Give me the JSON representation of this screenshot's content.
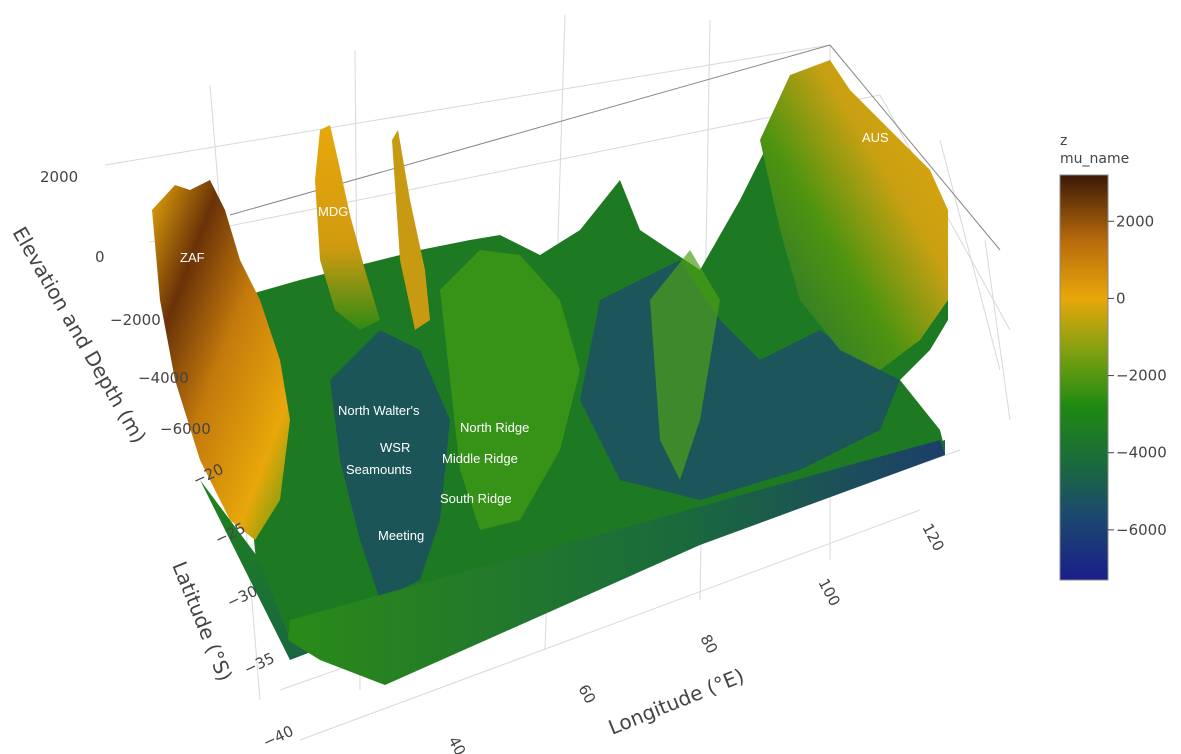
{
  "chart_data": {
    "type": "surface",
    "axes": {
      "x": {
        "label": "Longitude (°E)",
        "ticks": [
          40,
          60,
          80,
          100,
          120
        ],
        "range": [
          30,
          125
        ]
      },
      "y": {
        "label": "Latitude (°S)",
        "ticks": [
          -20,
          -25,
          -30,
          -35,
          -40
        ],
        "range": [
          -42,
          -17
        ]
      },
      "z": {
        "label": "Elevation and Depth (m)",
        "ticks": [
          2000,
          0,
          -2000,
          -4000,
          -6000
        ],
        "range": [
          -7300,
          3200
        ]
      }
    },
    "grid": true,
    "colorbar": {
      "title_line1": "z",
      "title_line2": "mu_name",
      "ticks": [
        2000,
        0,
        -2000,
        -4000,
        -6000
      ],
      "range": [
        -7300,
        3200
      ],
      "colors": [
        {
          "value": -7300,
          "color": "#1a1e8a"
        },
        {
          "value": -5600,
          "color": "#1c4a6e"
        },
        {
          "value": -4300,
          "color": "#1a6a3c"
        },
        {
          "value": -2800,
          "color": "#1f8a12"
        },
        {
          "value": -1400,
          "color": "#7ea010"
        },
        {
          "value": 0,
          "color": "#e8a70a"
        },
        {
          "value": 1500,
          "color": "#b86a0c"
        },
        {
          "value": 3200,
          "color": "#3b1906"
        }
      ]
    },
    "annotations": [
      {
        "text": "ZAF",
        "lon": 30,
        "lat": -36,
        "z": 800
      },
      {
        "text": "MDG",
        "lon": 47,
        "lat": -19,
        "z": 1200
      },
      {
        "text": "AUS",
        "lon": 122,
        "lat": -25,
        "z": 1000
      },
      {
        "text": "North Walter's",
        "lon": 45,
        "lat": -27,
        "z": -2500
      },
      {
        "text": "WSR",
        "lon": 46,
        "lat": -28.5,
        "z": -3000
      },
      {
        "text": "Seamounts",
        "lon": 46,
        "lat": -29,
        "z": -3000
      },
      {
        "text": "North Ridge",
        "lon": 57,
        "lat": -26,
        "z": -3500
      },
      {
        "text": "Middle Ridge",
        "lon": 56,
        "lat": -28,
        "z": -3500
      },
      {
        "text": "South Ridge",
        "lon": 56,
        "lat": -31,
        "z": -3500
      },
      {
        "text": "Meeting",
        "lon": 46,
        "lat": -34,
        "z": -3500
      }
    ]
  }
}
